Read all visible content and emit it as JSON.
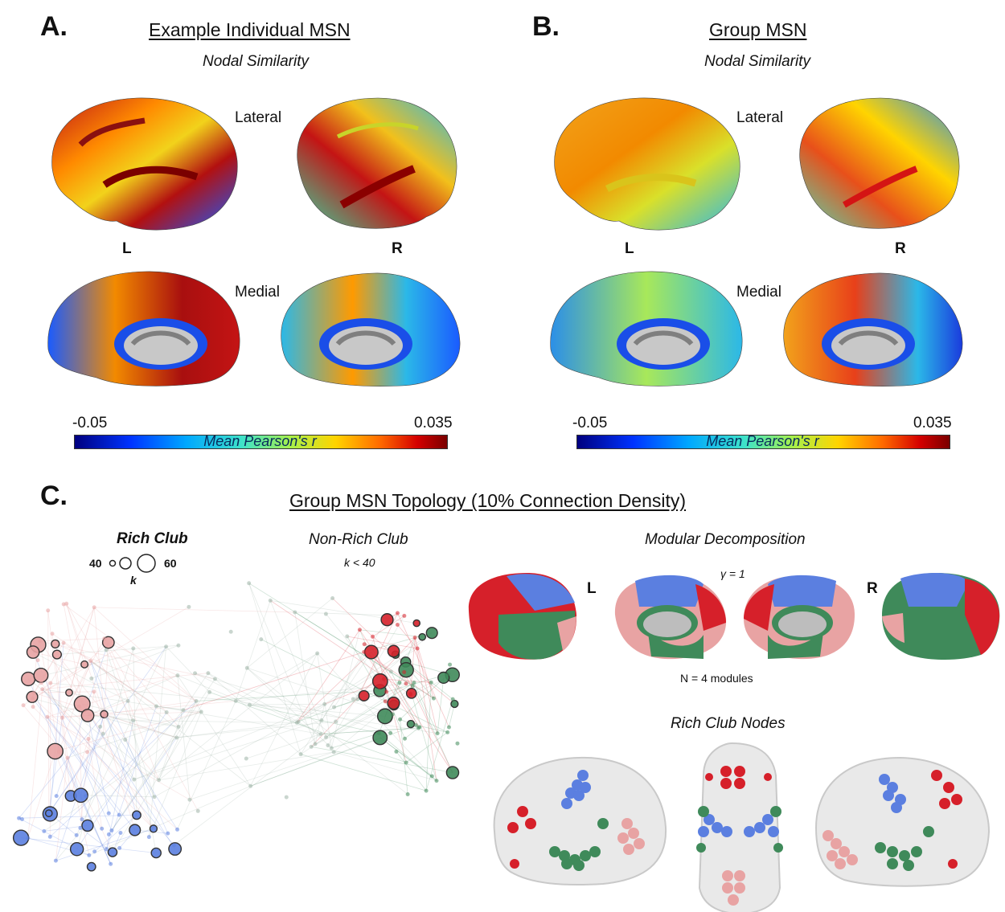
{
  "panel_a": {
    "letter": "A.",
    "title": "Example Individual MSN",
    "subtitle": "Nodal Similarity",
    "lateral_label": "Lateral",
    "medial_label": "Medial",
    "left_label": "L",
    "right_label": "R",
    "colorbar": {
      "min": "-0.05",
      "max": "0.035",
      "label": "Mean Pearson's r"
    }
  },
  "panel_b": {
    "letter": "B.",
    "title": "Group MSN",
    "subtitle": "Nodal Similarity",
    "lateral_label": "Lateral",
    "medial_label": "Medial",
    "left_label": "L",
    "right_label": "R",
    "colorbar": {
      "min": "-0.05",
      "max": "0.035",
      "label": "Mean Pearson's r"
    }
  },
  "panel_c": {
    "letter": "C.",
    "title": "Group MSN Topology (10% Connection Density)",
    "rich_club_legend": {
      "title": "Rich Club",
      "k_min": "40",
      "k_max": "60",
      "k_symbol": "k"
    },
    "non_rich_club": {
      "title": "Non-Rich Club",
      "condition": "k < 40"
    },
    "modular": {
      "title": "Modular Decomposition",
      "gamma": "γ = 1",
      "left_label": "L",
      "right_label": "R",
      "modules_count": "N = 4 modules"
    },
    "rich_club_nodes_title": "Rich Club Nodes"
  },
  "colors": {
    "module_red": "#d6202a",
    "module_blue": "#5b7fe0",
    "module_green": "#3f8a5a",
    "module_pink": "#e8a3a3",
    "brain_gray": "#b8b8b8"
  }
}
